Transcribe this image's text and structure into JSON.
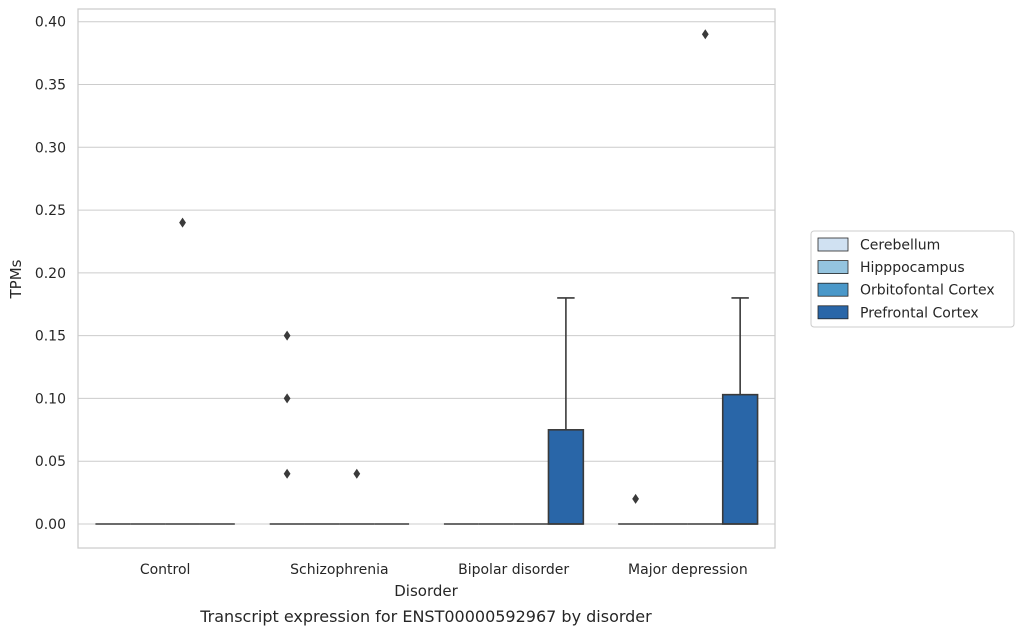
{
  "chart_data": {
    "type": "box",
    "caption": "Transcript expression for ENST00000592967 by disorder",
    "xlabel": "Disorder",
    "ylabel": "TPMs",
    "ylim": [
      -0.02,
      0.41
    ],
    "yticks": [
      0.0,
      0.05,
      0.1,
      0.15,
      0.2,
      0.25,
      0.3,
      0.35,
      0.4
    ],
    "ytick_labels": [
      "0.00",
      "0.05",
      "0.10",
      "0.15",
      "0.20",
      "0.25",
      "0.30",
      "0.35",
      "0.40"
    ],
    "grid": "horizontal",
    "legend_position": "right",
    "categories": [
      "Control",
      "Schizophrenia",
      "Bipolar disorder",
      "Major depression"
    ],
    "series": [
      {
        "name": "Cerebellum",
        "color": "#d0e1f2",
        "boxes": [
          {
            "q1": 0,
            "median": 0,
            "q3": 0,
            "whisker_low": 0,
            "whisker_high": 0,
            "outliers": []
          },
          {
            "q1": 0,
            "median": 0,
            "q3": 0,
            "whisker_low": 0,
            "whisker_high": 0,
            "outliers": [
              0.04,
              0.1,
              0.15
            ]
          },
          {
            "q1": 0,
            "median": 0,
            "q3": 0,
            "whisker_low": 0,
            "whisker_high": 0,
            "outliers": []
          },
          {
            "q1": 0,
            "median": 0,
            "q3": 0,
            "whisker_low": 0,
            "whisker_high": 0,
            "outliers": [
              0.02
            ]
          }
        ]
      },
      {
        "name": "Hipppocampus",
        "color": "#94c4df",
        "boxes": [
          {
            "q1": 0,
            "median": 0,
            "q3": 0,
            "whisker_low": 0,
            "whisker_high": 0,
            "outliers": []
          },
          {
            "q1": 0,
            "median": 0,
            "q3": 0,
            "whisker_low": 0,
            "whisker_high": 0,
            "outliers": []
          },
          {
            "q1": 0,
            "median": 0,
            "q3": 0,
            "whisker_low": 0,
            "whisker_high": 0,
            "outliers": []
          },
          {
            "q1": 0,
            "median": 0,
            "q3": 0,
            "whisker_low": 0,
            "whisker_high": 0,
            "outliers": []
          }
        ]
      },
      {
        "name": "Orbitofontal Cortex",
        "color": "#4a98c9",
        "boxes": [
          {
            "q1": 0,
            "median": 0,
            "q3": 0,
            "whisker_low": 0,
            "whisker_high": 0,
            "outliers": [
              0.24
            ]
          },
          {
            "q1": 0,
            "median": 0,
            "q3": 0,
            "whisker_low": 0,
            "whisker_high": 0,
            "outliers": [
              0.04
            ]
          },
          {
            "q1": 0,
            "median": 0,
            "q3": 0,
            "whisker_low": 0,
            "whisker_high": 0,
            "outliers": []
          },
          {
            "q1": 0,
            "median": 0,
            "q3": 0,
            "whisker_low": 0,
            "whisker_high": 0,
            "outliers": [
              0.39
            ]
          }
        ]
      },
      {
        "name": "Prefrontal Cortex",
        "color": "#2966a8",
        "boxes": [
          {
            "q1": 0,
            "median": 0,
            "q3": 0,
            "whisker_low": 0,
            "whisker_high": 0,
            "outliers": []
          },
          {
            "q1": 0,
            "median": 0,
            "q3": 0,
            "whisker_low": 0,
            "whisker_high": 0,
            "outliers": []
          },
          {
            "q1": 0,
            "median": 0,
            "q3": 0.075,
            "whisker_low": 0,
            "whisker_high": 0.18,
            "outliers": []
          },
          {
            "q1": 0,
            "median": 0,
            "q3": 0.103,
            "whisker_low": 0,
            "whisker_high": 0.18,
            "outliers": []
          }
        ]
      }
    ],
    "colors": {
      "grid": "#cccccc",
      "frame": "#cccccc",
      "line": "#3a3a3a",
      "text": "#262626"
    }
  }
}
